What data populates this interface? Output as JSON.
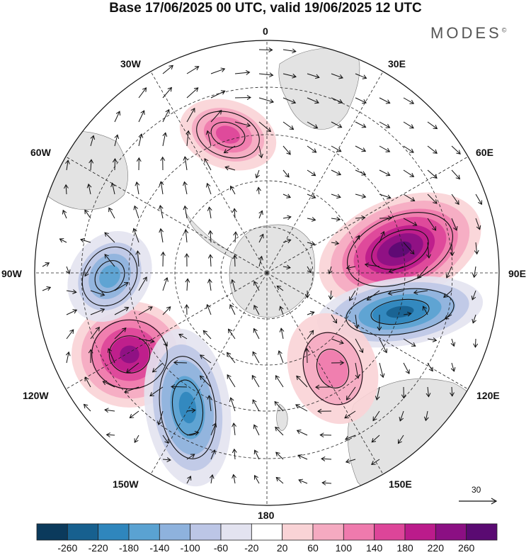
{
  "title": "Base 17/06/2025 00 UTC, valid 19/06/2025 12 UTC",
  "brand": {
    "name": "MODES",
    "mark": "©"
  },
  "longitude_labels": {
    "lon_0": "0",
    "lon_30e": "30E",
    "lon_60e": "60E",
    "lon_90e": "90E",
    "lon_120e": "120E",
    "lon_150e": "150E",
    "lon_180": "180",
    "lon_150w": "150W",
    "lon_120w": "120W",
    "lon_90w": "90W",
    "lon_60w": "60W",
    "lon_30w": "30W"
  },
  "projection": "polar stereographic, south pole",
  "reference_vector": {
    "value": "30"
  },
  "colorbar": {
    "ticks": [
      "-260",
      "-220",
      "-180",
      "-140",
      "-100",
      "-60",
      "-20",
      "20",
      "60",
      "100",
      "140",
      "180",
      "220",
      "260"
    ],
    "colors": [
      "#0b3a5c",
      "#17608f",
      "#2f86bd",
      "#5aa2d2",
      "#8eb2dd",
      "#bcc6e6",
      "#e3e3f0",
      "#ffffff",
      "#f9d3d6",
      "#f5aac1",
      "#ef7aad",
      "#dd4599",
      "#bb1b8b",
      "#8b0f83",
      "#5a0a72"
    ]
  },
  "colors": {
    "land": "#e3e3e3",
    "background": "#ffffff",
    "grid": "#222222"
  },
  "anomaly_centers": [
    {
      "name": "positive-60e",
      "value": "260"
    },
    {
      "name": "negative-90e",
      "value": "-220"
    },
    {
      "name": "positive-120w",
      "value": "220"
    },
    {
      "name": "negative-150w",
      "value": "-180"
    },
    {
      "name": "negative-90w",
      "value": "-140"
    },
    {
      "name": "positive-20w",
      "value": "140"
    },
    {
      "name": "positive-150e",
      "value": "100"
    }
  ]
}
